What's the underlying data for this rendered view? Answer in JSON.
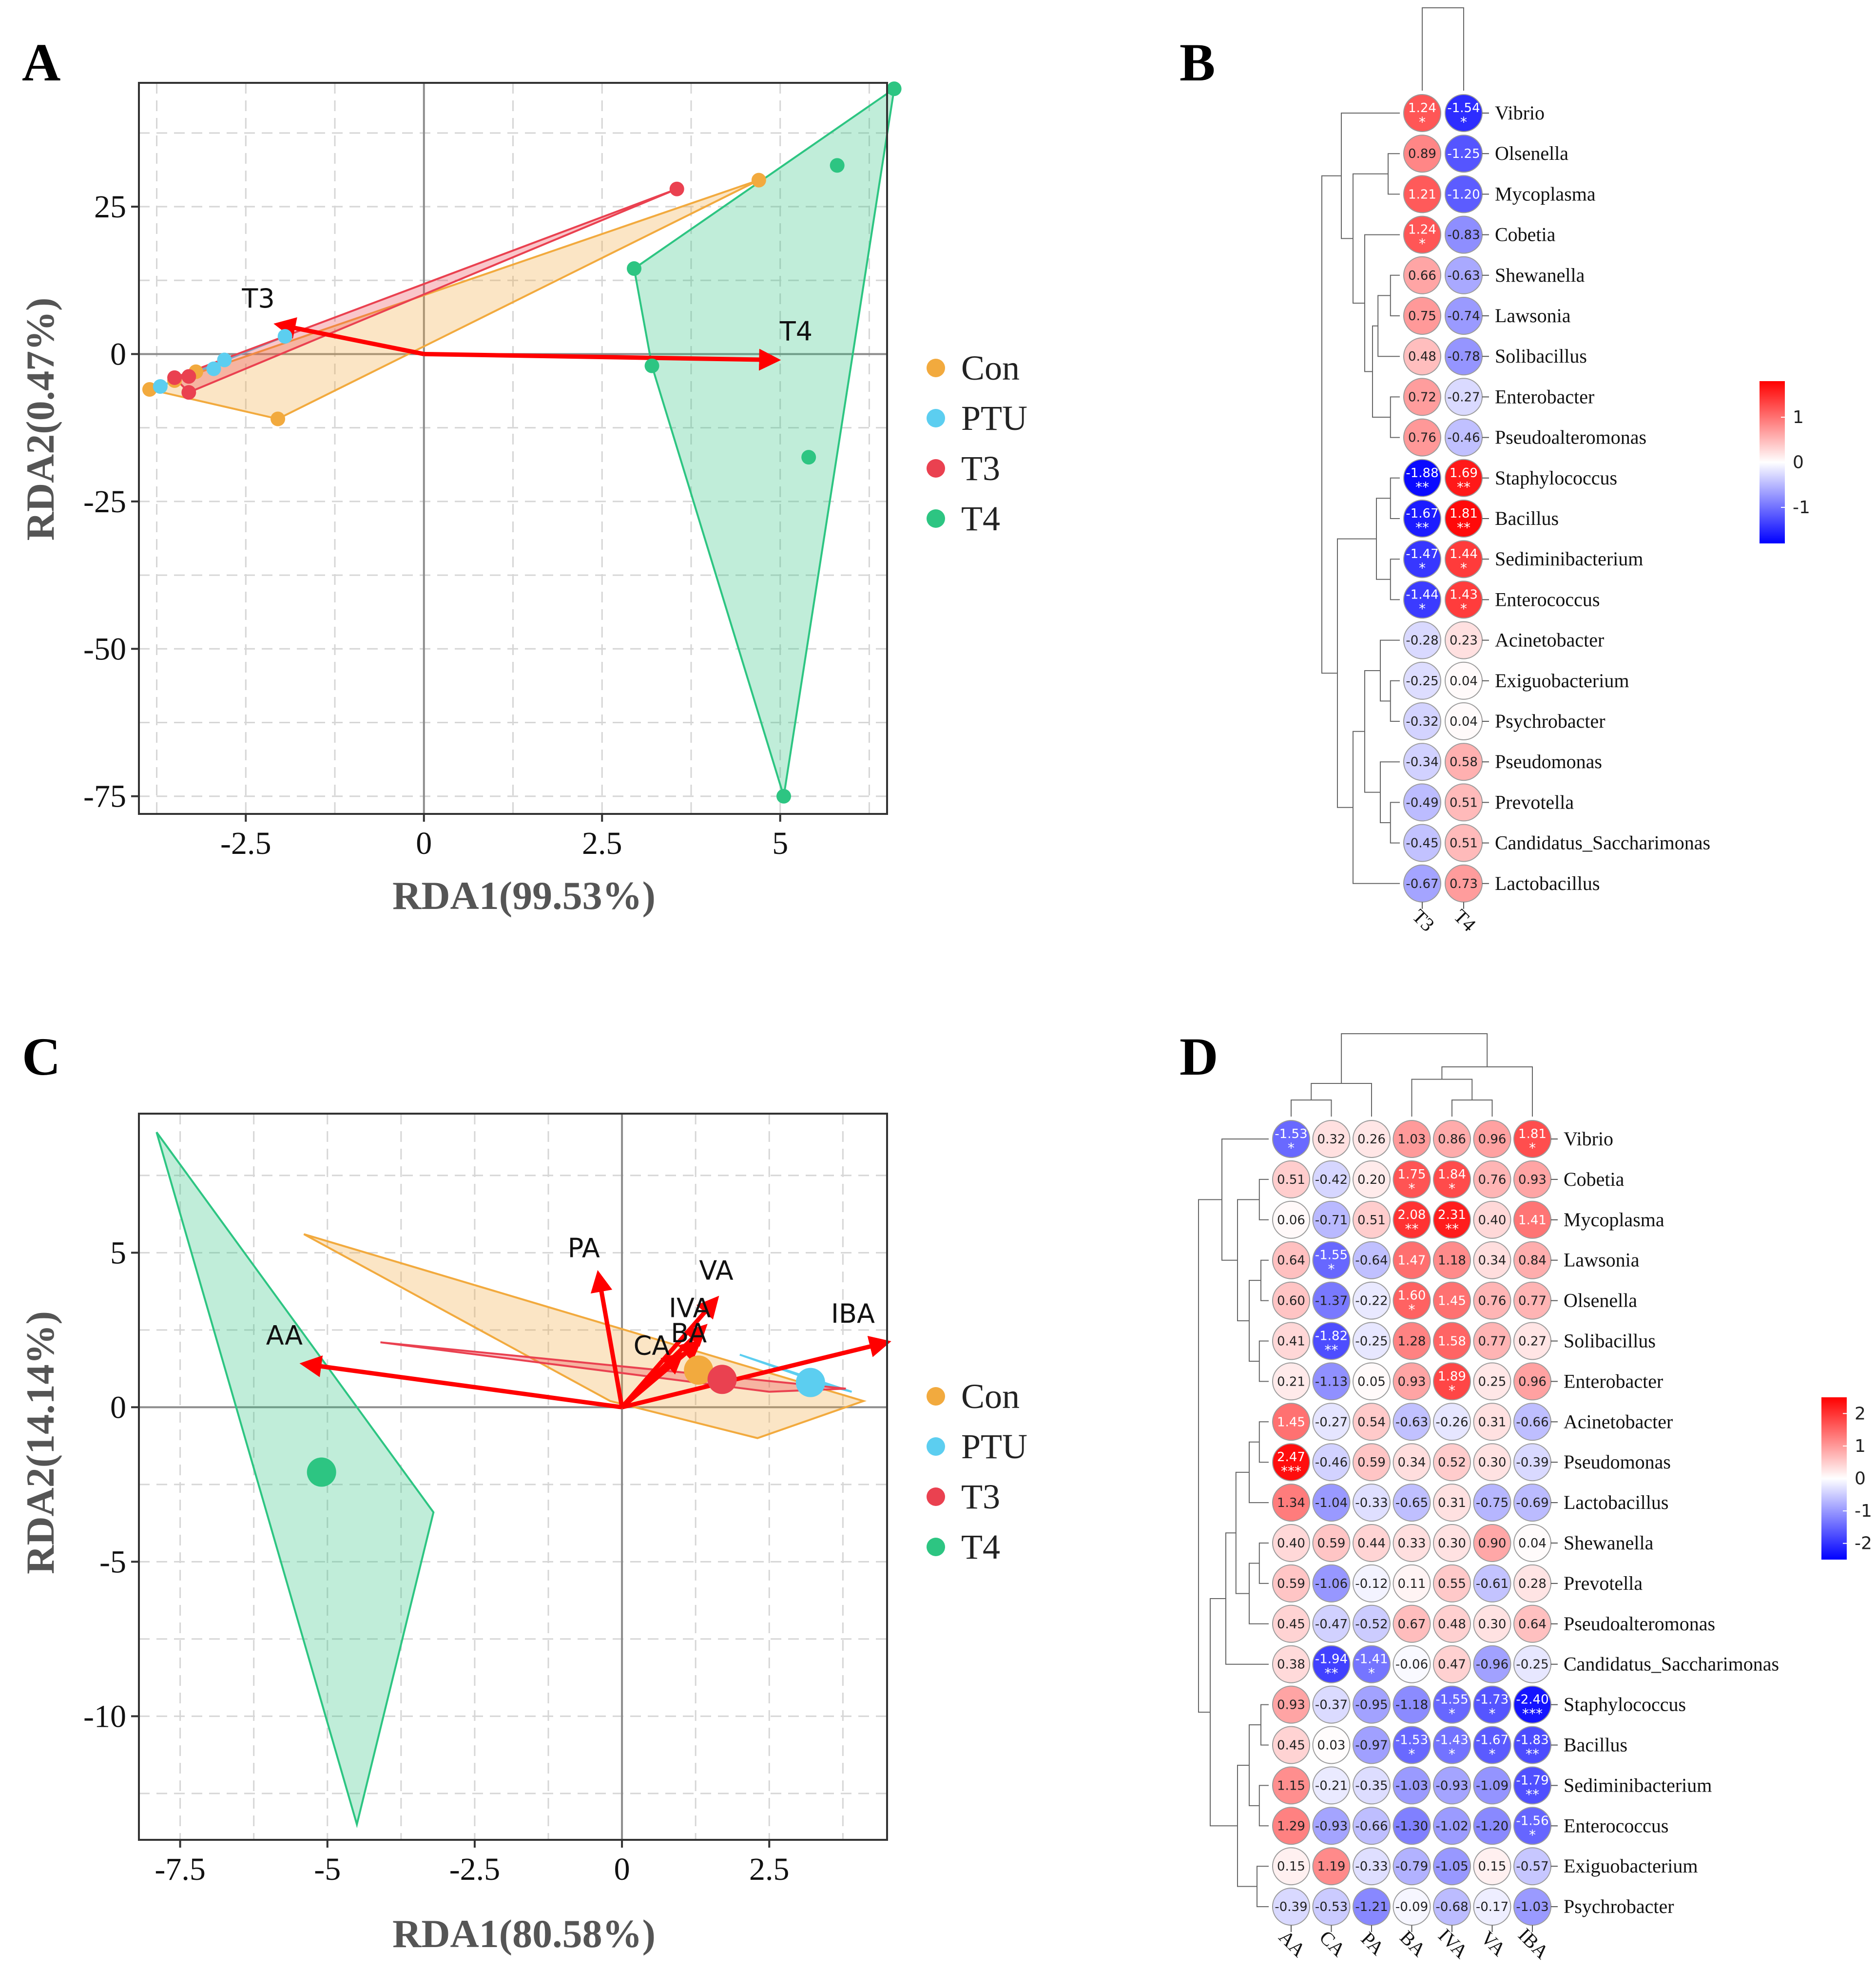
{
  "colors": {
    "Con": "#F2AA3E",
    "PTU": "#5CCEF0",
    "T3": "#EA4150",
    "T4": "#2DC582",
    "arrow": "#FF0000"
  },
  "legend": [
    {
      "key": "Con",
      "label": "Con"
    },
    {
      "key": "PTU",
      "label": "PTU"
    },
    {
      "key": "T3",
      "label": "T3"
    },
    {
      "key": "T4",
      "label": "T4"
    }
  ],
  "panels": {
    "A": "A",
    "B": "B",
    "C": "C",
    "D": "D"
  },
  "chart_data": [
    {
      "id": "A",
      "type": "scatter",
      "subtype": "RDA biplot",
      "xlabel": "RDA1(99.53%)",
      "ylabel": "RDA2(0.47%)",
      "xlim": [
        -4,
        6.5
      ],
      "ylim": [
        -78,
        46
      ],
      "xticks": [
        -2.5,
        0,
        2.5,
        5
      ],
      "xtick_labels": [
        "-2.5",
        "0",
        "2.5",
        "5"
      ],
      "yticks": [
        25,
        0,
        -25,
        -50,
        -75
      ],
      "ytick_labels": [
        "25",
        "0",
        "-25",
        "-50",
        "-75"
      ],
      "series": [
        {
          "name": "Con",
          "points": [
            [
              -3.85,
              -6
            ],
            [
              -2.05,
              -11
            ],
            [
              4.7,
              29.5
            ],
            [
              -3.2,
              -3
            ],
            [
              -3.5,
              -4.5
            ]
          ],
          "hull": [
            [
              -3.85,
              -6
            ],
            [
              4.7,
              29.5
            ],
            [
              -2.05,
              -11
            ]
          ]
        },
        {
          "name": "PTU",
          "points": [
            [
              -3.7,
              -5.5
            ],
            [
              -2.8,
              -1
            ],
            [
              -2.95,
              -2.5
            ],
            [
              -1.95,
              3
            ]
          ],
          "hull": [
            [
              -3.7,
              -5.5
            ],
            [
              -1.95,
              3
            ],
            [
              -2.8,
              -1
            ]
          ]
        },
        {
          "name": "T3",
          "points": [
            [
              -3.5,
              -4
            ],
            [
              3.55,
              28
            ],
            [
              -3.3,
              -6.5
            ],
            [
              -3.3,
              -3.8
            ]
          ],
          "hull": [
            [
              -3.5,
              -4
            ],
            [
              3.55,
              28
            ],
            [
              -3.3,
              -6.5
            ]
          ]
        },
        {
          "name": "T4",
          "points": [
            [
              6.6,
              45
            ],
            [
              5.8,
              32
            ],
            [
              2.95,
              14.5
            ],
            [
              3.2,
              -2
            ],
            [
              5.4,
              -17.5
            ],
            [
              5.05,
              -75
            ]
          ],
          "hull": [
            [
              6.6,
              45
            ],
            [
              2.95,
              14.5
            ],
            [
              3.2,
              -2
            ],
            [
              5.05,
              -75
            ]
          ]
        }
      ],
      "arrows": [
        {
          "label": "T3",
          "x": -2.05,
          "y": 5
        },
        {
          "label": "T4",
          "x": 4.95,
          "y": -1
        }
      ]
    },
    {
      "id": "C",
      "type": "scatter",
      "subtype": "RDA biplot",
      "xlabel": "RDA1(80.58%)",
      "ylabel": "RDA2(14.14%)",
      "xlim": [
        -8.2,
        4.5
      ],
      "ylim": [
        -14,
        9.5
      ],
      "xticks": [
        -7.5,
        -5,
        -2.5,
        0,
        2.5
      ],
      "xtick_labels": [
        "-7.5",
        "-5",
        "-2.5",
        "0",
        "2.5"
      ],
      "yticks": [
        5,
        0,
        -5,
        -10
      ],
      "ytick_labels": [
        "5",
        "0",
        "-5",
        "-10"
      ],
      "series": [
        {
          "name": "Con",
          "centroid": [
            1.3,
            1.2
          ],
          "hull": [
            [
              -5.4,
              5.6
            ],
            [
              4.1,
              0.2
            ],
            [
              2.3,
              -1
            ],
            [
              -0.2,
              0.2
            ]
          ]
        },
        {
          "name": "PTU",
          "centroid": [
            3.2,
            0.8
          ],
          "hull": [
            [
              2.0,
              1.7
            ],
            [
              3.9,
              0.5
            ],
            [
              3.5,
              0.7
            ]
          ]
        },
        {
          "name": "T3",
          "centroid": [
            1.7,
            0.9
          ],
          "hull": [
            [
              -4.1,
              2.1
            ],
            [
              3.8,
              0.6
            ],
            [
              2.5,
              0.5
            ]
          ]
        },
        {
          "name": "T4",
          "centroid": [
            -5.1,
            -2.1
          ],
          "hull": [
            [
              -7.9,
              8.9
            ],
            [
              -3.2,
              -3.4
            ],
            [
              -4.5,
              -13.5
            ]
          ]
        }
      ],
      "arrows": [
        {
          "label": "PA",
          "x": -0.4,
          "y": 4.3
        },
        {
          "label": "VA",
          "x": 1.6,
          "y": 3.5
        },
        {
          "label": "IVA",
          "x": 1.4,
          "y": 2.6
        },
        {
          "label": "CA",
          "x": 1.0,
          "y": 1.7
        },
        {
          "label": "BA",
          "x": 1.3,
          "y": 2.1
        },
        {
          "label": "IBA",
          "x": 4.5,
          "y": 2.1
        },
        {
          "label": "AA",
          "x": -5.4,
          "y": 1.4
        }
      ]
    },
    {
      "id": "B",
      "type": "heatmap",
      "subtype": "correlation",
      "columns": [
        "T3",
        "T4"
      ],
      "colorbar": {
        "min": -1.8,
        "max": 1.8,
        "ticks": [
          1,
          0,
          -1
        ],
        "tick_labels": [
          "1",
          "0",
          "-1"
        ]
      },
      "rows": [
        {
          "genus": "Vibrio",
          "values": [
            "1.24",
            "-1.54"
          ],
          "stars": [
            "*",
            "*"
          ]
        },
        {
          "genus": "Olsenella",
          "values": [
            "0.89",
            "-1.25"
          ],
          "stars": [
            "",
            ""
          ]
        },
        {
          "genus": "Mycoplasma",
          "values": [
            "1.21",
            "-1.20"
          ],
          "stars": [
            "",
            ""
          ]
        },
        {
          "genus": "Cobetia",
          "values": [
            "1.24",
            "-0.83"
          ],
          "stars": [
            "*",
            ""
          ]
        },
        {
          "genus": "Shewanella",
          "values": [
            "0.66",
            "-0.63"
          ],
          "stars": [
            "",
            ""
          ]
        },
        {
          "genus": "Lawsonia",
          "values": [
            "0.75",
            "-0.74"
          ],
          "stars": [
            "",
            ""
          ]
        },
        {
          "genus": "Solibacillus",
          "values": [
            "0.48",
            "-0.78"
          ],
          "stars": [
            "",
            ""
          ]
        },
        {
          "genus": "Enterobacter",
          "values": [
            "0.72",
            "-0.27"
          ],
          "stars": [
            "",
            ""
          ]
        },
        {
          "genus": "Pseudoalteromonas",
          "values": [
            "0.76",
            "-0.46"
          ],
          "stars": [
            "",
            ""
          ]
        },
        {
          "genus": "Staphylococcus",
          "values": [
            "-1.88",
            "1.69"
          ],
          "stars": [
            "**",
            "**"
          ]
        },
        {
          "genus": "Bacillus",
          "values": [
            "-1.67",
            "1.81"
          ],
          "stars": [
            "**",
            "**"
          ]
        },
        {
          "genus": "Sediminibacterium",
          "values": [
            "-1.47",
            "1.44"
          ],
          "stars": [
            "*",
            "*"
          ]
        },
        {
          "genus": "Enterococcus",
          "values": [
            "-1.44",
            "1.43"
          ],
          "stars": [
            "*",
            "*"
          ]
        },
        {
          "genus": "Acinetobacter",
          "values": [
            "-0.28",
            "0.23"
          ],
          "stars": [
            "",
            ""
          ]
        },
        {
          "genus": "Exiguobacterium",
          "values": [
            "-0.25",
            "0.04"
          ],
          "stars": [
            "",
            ""
          ]
        },
        {
          "genus": "Psychrobacter",
          "values": [
            "-0.32",
            "0.04"
          ],
          "stars": [
            "",
            ""
          ]
        },
        {
          "genus": "Pseudomonas",
          "values": [
            "-0.34",
            "0.58"
          ],
          "stars": [
            "",
            ""
          ]
        },
        {
          "genus": "Prevotella",
          "values": [
            "-0.49",
            "0.51"
          ],
          "stars": [
            "",
            ""
          ]
        },
        {
          "genus": "Candidatus_Saccharimonas",
          "values": [
            "-0.45",
            "0.51"
          ],
          "stars": [
            "",
            ""
          ]
        },
        {
          "genus": "Lactobacillus",
          "values": [
            "-0.67",
            "0.73"
          ],
          "stars": [
            "",
            ""
          ]
        }
      ]
    },
    {
      "id": "D",
      "type": "heatmap",
      "subtype": "correlation",
      "columns": [
        "AA",
        "CA",
        "PA",
        "BA",
        "IVA",
        "VA",
        "IBA"
      ],
      "colorbar": {
        "min": -2.5,
        "max": 2.5,
        "ticks": [
          2,
          1,
          0,
          -1,
          -2
        ],
        "tick_labels": [
          "2",
          "1",
          "0",
          "-1",
          "-2"
        ]
      },
      "rows": [
        {
          "genus": "Vibrio",
          "values": [
            "-1.53",
            "0.32",
            "0.26",
            "1.03",
            "0.86",
            "0.96",
            "1.81"
          ],
          "stars": [
            "*",
            "",
            "",
            "",
            "",
            "",
            "*"
          ]
        },
        {
          "genus": "Cobetia",
          "values": [
            "0.51",
            "-0.42",
            "0.20",
            "1.75",
            "1.84",
            "0.76",
            "0.93"
          ],
          "stars": [
            "",
            "",
            "",
            "*",
            "*",
            "",
            ""
          ]
        },
        {
          "genus": "Mycoplasma",
          "values": [
            "0.06",
            "-0.71",
            "0.51",
            "2.08",
            "2.31",
            "0.40",
            "1.41"
          ],
          "stars": [
            "",
            "",
            "",
            "**",
            "**",
            "",
            ""
          ]
        },
        {
          "genus": "Lawsonia",
          "values": [
            "0.64",
            "-1.55",
            "-0.64",
            "1.47",
            "1.18",
            "0.34",
            "0.84"
          ],
          "stars": [
            "",
            "*",
            "",
            "",
            "",
            "",
            ""
          ]
        },
        {
          "genus": "Olsenella",
          "values": [
            "0.60",
            "-1.37",
            "-0.22",
            "1.60",
            "1.45",
            "0.76",
            "0.77"
          ],
          "stars": [
            "",
            "",
            "",
            "*",
            "",
            "",
            ""
          ]
        },
        {
          "genus": "Solibacillus",
          "values": [
            "0.41",
            "-1.82",
            "-0.25",
            "1.28",
            "1.58",
            "0.77",
            "0.27"
          ],
          "stars": [
            "",
            "**",
            "",
            "",
            "",
            "",
            ""
          ]
        },
        {
          "genus": "Enterobacter",
          "values": [
            "0.21",
            "-1.13",
            "0.05",
            "0.93",
            "1.89",
            "0.25",
            "0.96"
          ],
          "stars": [
            "",
            "",
            "",
            "",
            "*",
            "",
            ""
          ]
        },
        {
          "genus": "Acinetobacter",
          "values": [
            "1.45",
            "-0.27",
            "0.54",
            "-0.63",
            "-0.26",
            "0.31",
            "-0.66"
          ],
          "stars": [
            "",
            "",
            "",
            "",
            "",
            "",
            ""
          ]
        },
        {
          "genus": "Pseudomonas",
          "values": [
            "2.47",
            "-0.46",
            "0.59",
            "0.34",
            "0.52",
            "0.30",
            "-0.39"
          ],
          "stars": [
            "***",
            "",
            "",
            "",
            "",
            "",
            ""
          ]
        },
        {
          "genus": "Lactobacillus",
          "values": [
            "1.34",
            "-1.04",
            "-0.33",
            "-0.65",
            "0.31",
            "-0.75",
            "-0.69"
          ],
          "stars": [
            "",
            "",
            "",
            "",
            "",
            "",
            ""
          ]
        },
        {
          "genus": "Shewanella",
          "values": [
            "0.40",
            "0.59",
            "0.44",
            "0.33",
            "0.30",
            "0.90",
            "0.04"
          ],
          "stars": [
            "",
            "",
            "",
            "",
            "",
            "",
            ""
          ]
        },
        {
          "genus": "Prevotella",
          "values": [
            "0.59",
            "-1.06",
            "-0.12",
            "0.11",
            "0.55",
            "-0.61",
            "0.28"
          ],
          "stars": [
            "",
            "",
            "",
            "",
            "",
            "",
            ""
          ]
        },
        {
          "genus": "Pseudoalteromonas",
          "values": [
            "0.45",
            "-0.47",
            "-0.52",
            "0.67",
            "0.48",
            "0.30",
            "0.64"
          ],
          "stars": [
            "",
            "",
            "",
            "",
            "",
            "",
            ""
          ]
        },
        {
          "genus": "Candidatus_Saccharimonas",
          "values": [
            "0.38",
            "-1.94",
            "-1.41",
            "-0.06",
            "0.47",
            "-0.96",
            "-0.25"
          ],
          "stars": [
            "",
            "**",
            "*",
            "",
            "",
            "",
            ""
          ]
        },
        {
          "genus": "Staphylococcus",
          "values": [
            "0.93",
            "-0.37",
            "-0.95",
            "-1.18",
            "-1.55",
            "-1.73",
            "-2.40"
          ],
          "stars": [
            "",
            "",
            "",
            "",
            "*",
            "*",
            "***"
          ]
        },
        {
          "genus": "Bacillus",
          "values": [
            "0.45",
            "0.03",
            "-0.97",
            "-1.53",
            "-1.43",
            "-1.67",
            "-1.83"
          ],
          "stars": [
            "",
            "",
            "",
            "*",
            "*",
            "*",
            "**"
          ]
        },
        {
          "genus": "Sediminibacterium",
          "values": [
            "1.15",
            "-0.21",
            "-0.35",
            "-1.03",
            "-0.93",
            "-1.09",
            "-1.79"
          ],
          "stars": [
            "",
            "",
            "",
            "",
            "",
            "",
            "**"
          ]
        },
        {
          "genus": "Enterococcus",
          "values": [
            "1.29",
            "-0.93",
            "-0.66",
            "-1.30",
            "-1.02",
            "-1.20",
            "-1.56"
          ],
          "stars": [
            "",
            "",
            "",
            "",
            "",
            "",
            "*"
          ]
        },
        {
          "genus": "Exiguobacterium",
          "values": [
            "0.15",
            "1.19",
            "-0.33",
            "-0.79",
            "-1.05",
            "0.15",
            "-0.57"
          ],
          "stars": [
            "",
            "",
            "",
            "",
            "",
            "",
            ""
          ]
        },
        {
          "genus": "Psychrobacter",
          "values": [
            "-0.39",
            "-0.53",
            "-1.21",
            "-0.09",
            "-0.68",
            "-0.17",
            "-1.03"
          ],
          "stars": [
            "",
            "",
            "",
            "",
            "",
            "",
            ""
          ]
        }
      ]
    }
  ]
}
